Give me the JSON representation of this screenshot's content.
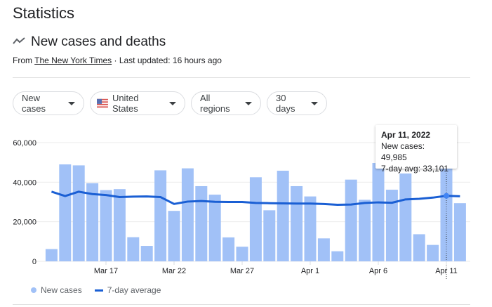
{
  "page_title": "Statistics",
  "section": {
    "title": "New cases and deaths",
    "icon": "trending-icon",
    "source_prefix": "From",
    "source_link": "The New York Times",
    "updated": " · Last updated: 16 hours ago"
  },
  "filters": [
    {
      "label": "New cases"
    },
    {
      "label": "United States",
      "icon": "us-flag-icon"
    },
    {
      "label": "All regions"
    },
    {
      "label": "30 days"
    }
  ],
  "tooltip": {
    "date": "Apr 11, 2022",
    "cases": "New cases: 49,985",
    "avg": "7-day avg: 33,101"
  },
  "legend": {
    "cases": "New cases",
    "avg": "7-day average"
  },
  "colors": {
    "bars": "#a1c1f7",
    "line": "#1a5fd4",
    "highlight": "#4285f4"
  },
  "chart_data": {
    "type": "bar",
    "x": [
      "Mar 13",
      "Mar 14",
      "Mar 15",
      "Mar 16",
      "Mar 17",
      "Mar 18",
      "Mar 19",
      "Mar 20",
      "Mar 21",
      "Mar 22",
      "Mar 23",
      "Mar 24",
      "Mar 25",
      "Mar 26",
      "Mar 27",
      "Mar 28",
      "Mar 29",
      "Mar 30",
      "Mar 31",
      "Apr 1",
      "Apr 2",
      "Apr 3",
      "Apr 4",
      "Apr 5",
      "Apr 6",
      "Apr 7",
      "Apr 8",
      "Apr 9",
      "Apr 10",
      "Apr 11",
      "Apr 12"
    ],
    "series": [
      {
        "name": "New cases",
        "type": "bar",
        "values": [
          6200,
          49000,
          48500,
          39500,
          36000,
          36500,
          12200,
          7800,
          46000,
          25500,
          47000,
          38000,
          33700,
          12100,
          7400,
          42500,
          25800,
          45800,
          38000,
          32800,
          11600,
          5100,
          41300,
          31100,
          49700,
          36200,
          44400,
          13700,
          8300,
          49985,
          29400
        ]
      },
      {
        "name": "7-day average",
        "type": "line",
        "values": [
          35200,
          33000,
          35200,
          34000,
          33500,
          32500,
          32700,
          32800,
          32500,
          29000,
          30200,
          30500,
          30100,
          30000,
          30000,
          29500,
          29400,
          29300,
          29200,
          29200,
          29000,
          28600,
          28700,
          29500,
          29800,
          29600,
          31300,
          31600,
          32200,
          33101,
          32900
        ]
      }
    ],
    "yticks": [
      "0",
      "20,000",
      "40,000",
      "60,000"
    ],
    "xticks": [
      "Mar 17",
      "Mar 22",
      "Mar 27",
      "Apr 1",
      "Apr 6",
      "Apr 11"
    ],
    "ylim": [
      0,
      60000
    ],
    "grid": true,
    "legend": "bottom-left",
    "highlight": "Apr 11"
  }
}
